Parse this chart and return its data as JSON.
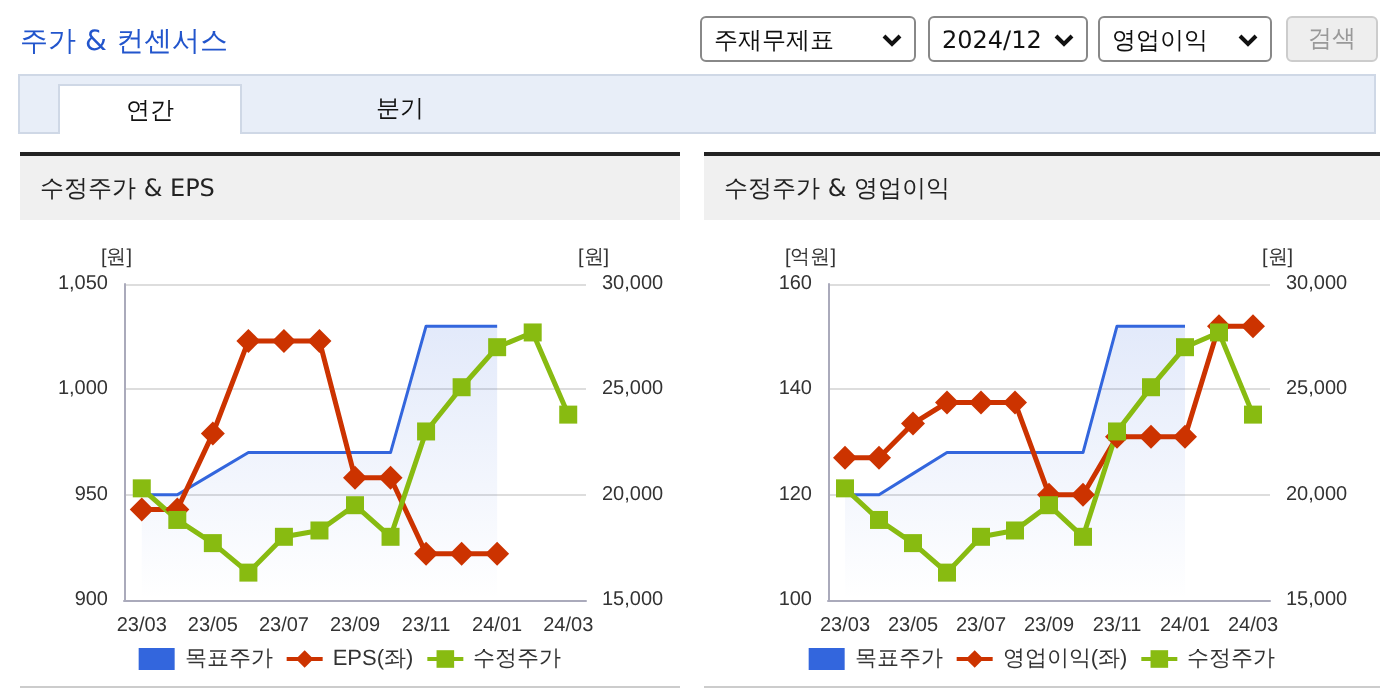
{
  "chart_data": [
    {
      "type": "other",
      "title": "주가 & 컨센서스",
      "annotations": [
        "주재무제표",
        "2024/12",
        "영업이익",
        "검색",
        "연간",
        "분기"
      ]
    },
    {
      "type": "line",
      "title": "수정주가 & EPS",
      "ylabel": "[원]",
      "y2label": "[원]",
      "categories": [
        "23/03",
        null,
        "23/05",
        null,
        "23/07",
        null,
        "23/09",
        null,
        "23/11",
        null,
        "24/01",
        null,
        "24/03"
      ],
      "series": [
        {
          "name": "목표주가",
          "type": "area",
          "axis": "y2",
          "color": "#3366dd",
          "marker": "none",
          "values": [
            20000,
            20000,
            21000,
            22000,
            22000,
            22000,
            22000,
            22000,
            28000,
            28000,
            28000,
            null,
            null
          ]
        },
        {
          "name": "EPS(좌)",
          "type": "line",
          "color": "#cc3300",
          "marker": "diamond",
          "values": [
            943,
            943,
            979,
            1023,
            1023,
            1023,
            958,
            958,
            922,
            922,
            922,
            null,
            null
          ]
        },
        {
          "name": "수정주가",
          "type": "line",
          "axis": "y2",
          "color": "#88bb11",
          "marker": "square",
          "values": [
            20300,
            18800,
            17700,
            16300,
            18000,
            18300,
            19500,
            18000,
            23000,
            25100,
            27000,
            27700,
            23800
          ]
        }
      ],
      "ylim": [
        900,
        1050
      ],
      "yticks": [
        900,
        950,
        {
          "value": 1000,
          "label": "1,000"
        },
        {
          "value": 1050,
          "label": "1,050"
        }
      ],
      "y2lim": [
        15000,
        30000
      ],
      "y2ticks": [
        {
          "value": 15000,
          "label": "15,000"
        },
        {
          "value": 20000,
          "label": "20,000"
        },
        {
          "value": 25000,
          "label": "25,000"
        },
        {
          "value": 30000,
          "label": "30,000"
        }
      ],
      "grid": "y",
      "legend": "bottom"
    },
    {
      "type": "line",
      "title": "수정주가 & 영업이익",
      "ylabel": "[억원]",
      "y2label": "[원]",
      "categories": [
        "23/03",
        null,
        "23/05",
        null,
        "23/07",
        null,
        "23/09",
        null,
        "23/11",
        null,
        "24/01",
        null,
        "24/03"
      ],
      "series": [
        {
          "name": "목표주가",
          "type": "area",
          "axis": "y2",
          "color": "#3366dd",
          "marker": "none",
          "values": [
            20000,
            20000,
            21000,
            22000,
            22000,
            22000,
            22000,
            22000,
            28000,
            28000,
            28000,
            null,
            null
          ]
        },
        {
          "name": "영업이익(좌)",
          "type": "line",
          "color": "#cc3300",
          "marker": "diamond",
          "values": [
            127,
            127,
            133.5,
            137.5,
            137.5,
            137.5,
            120,
            120,
            131,
            131,
            131,
            152,
            152
          ]
        },
        {
          "name": "수정주가",
          "type": "line",
          "axis": "y2",
          "color": "#88bb11",
          "marker": "square",
          "values": [
            20300,
            18800,
            17700,
            16300,
            18000,
            18300,
            19500,
            18000,
            23000,
            25100,
            27000,
            27700,
            23800
          ]
        }
      ],
      "ylim": [
        100,
        160
      ],
      "yticks": [
        100,
        120,
        140,
        160
      ],
      "y2lim": [
        15000,
        30000
      ],
      "y2ticks": [
        {
          "value": 15000,
          "label": "15,000"
        },
        {
          "value": 20000,
          "label": "20,000"
        },
        {
          "value": 25000,
          "label": "25,000"
        },
        {
          "value": 30000,
          "label": "30,000"
        }
      ],
      "grid": "y",
      "legend": "bottom"
    }
  ]
}
